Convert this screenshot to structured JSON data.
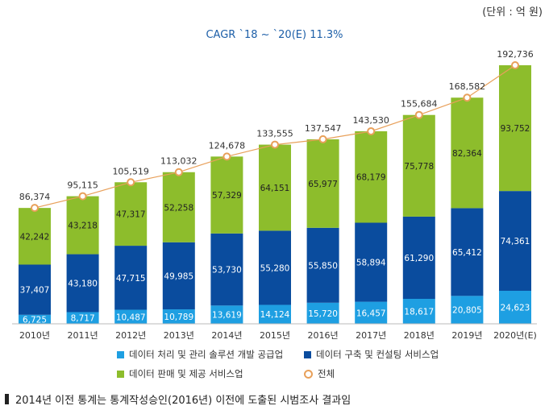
{
  "unit_label": "(단위 : 억 원)",
  "cagr_label": "CAGR `18 ~ `20(E) 11.3%",
  "footnote": "2014년 이전 통계는 통계작성승인(2016년) 이전에 도출된 시범조사 결과임",
  "colors": {
    "solution": "#1e9fe2",
    "construction": "#0a4c9e",
    "sales": "#8dbd2c",
    "total_line": "#e8a05a"
  },
  "chart_data": {
    "type": "bar",
    "stacked": true,
    "categories": [
      "2010년",
      "2011년",
      "2012년",
      "2013년",
      "2014년",
      "2015년",
      "2016년",
      "2017년",
      "2018년",
      "2019년",
      "2020년(E)"
    ],
    "series": [
      {
        "name": "데이터 처리 및 관리 솔루션 개발 공급업",
        "values": [
          6725,
          8717,
          10487,
          10789,
          13619,
          14124,
          15720,
          16457,
          18617,
          20805,
          24623
        ]
      },
      {
        "name": "데이터 구축 및 컨설팅 서비스업",
        "values": [
          37407,
          43180,
          47715,
          49985,
          53730,
          55280,
          55850,
          58894,
          61290,
          65412,
          74361
        ]
      },
      {
        "name": "데이터 판매 및 제공 서비스업",
        "values": [
          42242,
          43218,
          47317,
          52258,
          57329,
          64151,
          65977,
          68179,
          75778,
          82364,
          93752
        ]
      }
    ],
    "total": {
      "name": "전체",
      "type": "line",
      "values": [
        86374,
        95115,
        105519,
        113032,
        124678,
        133555,
        137547,
        143530,
        155684,
        168582,
        192736
      ]
    },
    "value_labels": {
      "solution": [
        "6,725",
        "8,717",
        "10,487",
        "10,789",
        "13,619",
        "14,124",
        "15,720",
        "16,457",
        "18,617",
        "20,805",
        "24,623"
      ],
      "construction": [
        "37,407",
        "43,180",
        "47,715",
        "49,985",
        "53,730",
        "55,280",
        "55,850",
        "58,894",
        "61,290",
        "65,412",
        "74,361"
      ],
      "sales": [
        "42,242",
        "43,218",
        "47,317",
        "52,258",
        "57,329",
        "64,151",
        "65,977",
        "68,179",
        "75,778",
        "82,364",
        "93,752"
      ],
      "total": [
        "86,374",
        "95,115",
        "105,519",
        "113,032",
        "124,678",
        "133,555",
        "137,547",
        "143,530",
        "155,684",
        "168,582",
        "192,736"
      ]
    },
    "ylim": [
      0,
      192736
    ],
    "legend": [
      {
        "key": "solution",
        "label": "데이터 처리 및 관리 솔루션 개발 공급업"
      },
      {
        "key": "construction",
        "label": "데이터 구축 및 컨설팅 서비스업"
      },
      {
        "key": "sales",
        "label": "데이터 판매 및 제공 서비스업"
      },
      {
        "key": "total",
        "label": "전체"
      }
    ]
  }
}
